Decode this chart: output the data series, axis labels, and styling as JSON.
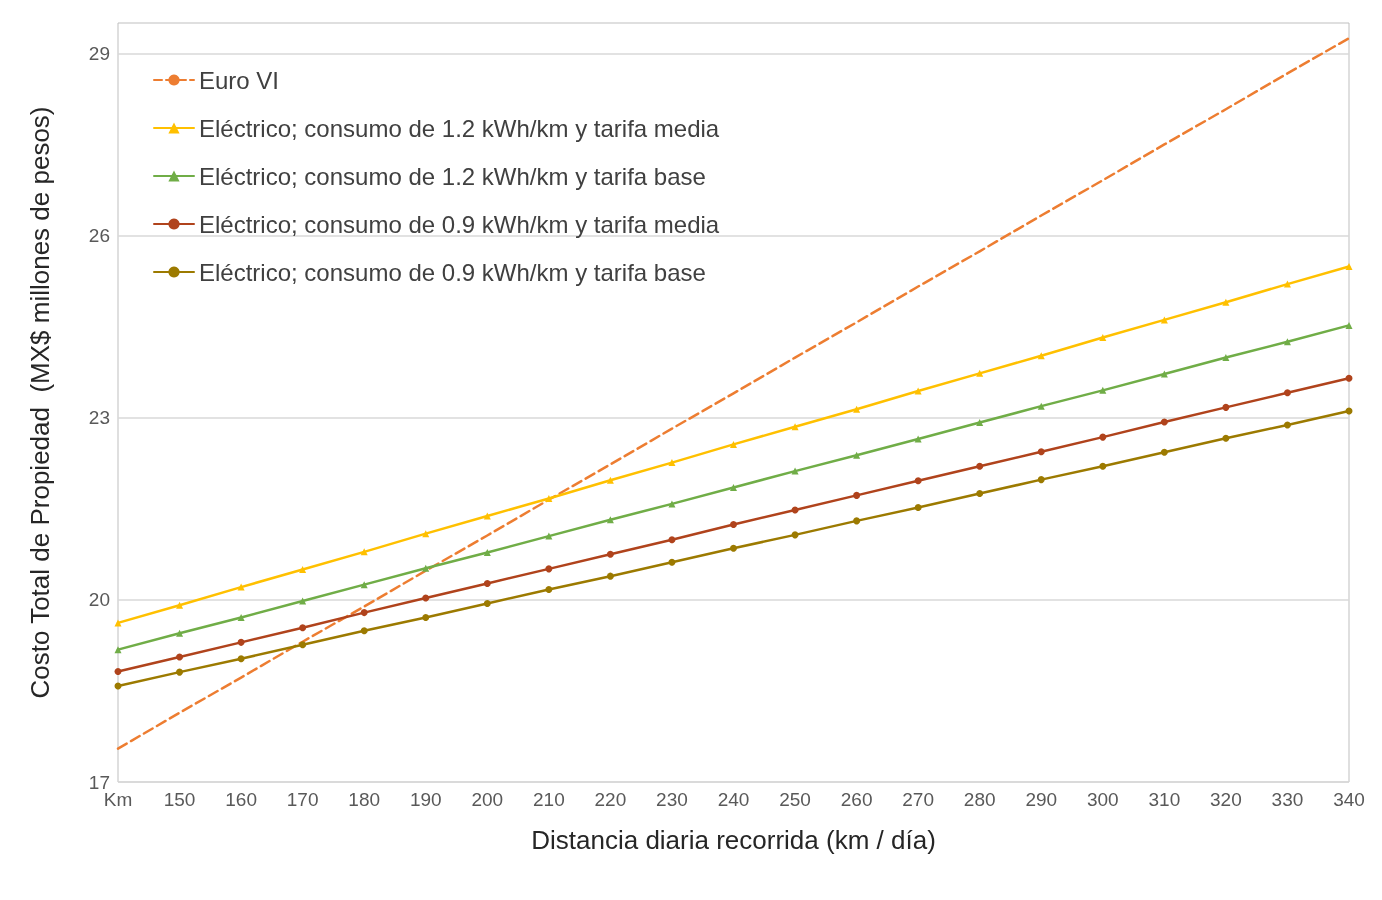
{
  "chart_data": {
    "type": "line",
    "xlabel": "Distancia diaria recorrida (km / día)",
    "ylabel": "Costo Total de Propiedad  (MX$ millones de pesos)",
    "categories": [
      "Km",
      "150",
      "160",
      "170",
      "180",
      "190",
      "200",
      "210",
      "220",
      "230",
      "240",
      "250",
      "260",
      "270",
      "280",
      "290",
      "300",
      "310",
      "320",
      "330",
      "340"
    ],
    "ylim": [
      17,
      29.5
    ],
    "yticks": [
      17,
      20,
      23,
      26,
      29
    ],
    "grid": "y",
    "legend": "top left",
    "series": [
      {
        "name": "Euro VI",
        "color": "#ed7d31",
        "line_style": "dashed",
        "marker": "none",
        "values": [
          17.55,
          18.14,
          18.72,
          19.31,
          19.89,
          20.48,
          21.06,
          21.65,
          22.23,
          22.82,
          23.4,
          23.99,
          24.57,
          25.16,
          25.74,
          26.33,
          26.91,
          27.5,
          28.08,
          28.67,
          29.25
        ]
      },
      {
        "name": "Eléctrico; consumo de 1.2 kWh/km y tarifa media",
        "color": "#ffc000",
        "line_style": "solid",
        "marker": "triangle",
        "values": [
          19.62,
          19.91,
          20.21,
          20.5,
          20.79,
          21.09,
          21.38,
          21.67,
          21.97,
          22.26,
          22.56,
          22.85,
          23.14,
          23.44,
          23.73,
          24.02,
          24.32,
          24.61,
          24.9,
          25.2,
          25.49
        ]
      },
      {
        "name": "Eléctrico; consumo de 1.2 kWh/km y tarifa base",
        "color": "#70ad47",
        "line_style": "solid",
        "marker": "triangle",
        "values": [
          19.18,
          19.45,
          19.71,
          19.98,
          20.25,
          20.52,
          20.78,
          21.05,
          21.32,
          21.58,
          21.85,
          22.12,
          22.38,
          22.65,
          22.92,
          23.19,
          23.45,
          23.72,
          23.99,
          24.25,
          24.52
        ]
      },
      {
        "name": "Eléctrico; consumo de 0.9 kWh/km y tarifa media",
        "color": "#b0431c",
        "line_style": "solid",
        "marker": "circle",
        "values": [
          18.82,
          19.06,
          19.3,
          19.54,
          19.79,
          20.03,
          20.27,
          20.51,
          20.75,
          20.99,
          21.24,
          21.48,
          21.72,
          21.96,
          22.2,
          22.44,
          22.68,
          22.93,
          23.17,
          23.41,
          23.65
        ]
      },
      {
        "name": "Eléctrico; consumo de 0.9 kWh/km y tarifa base",
        "color": "#9c7a00",
        "line_style": "solid",
        "marker": "circle",
        "values": [
          18.58,
          18.81,
          19.03,
          19.26,
          19.49,
          19.71,
          19.94,
          20.17,
          20.39,
          20.62,
          20.85,
          21.07,
          21.3,
          21.52,
          21.75,
          21.98,
          22.2,
          22.43,
          22.66,
          22.88,
          23.11
        ]
      }
    ]
  }
}
